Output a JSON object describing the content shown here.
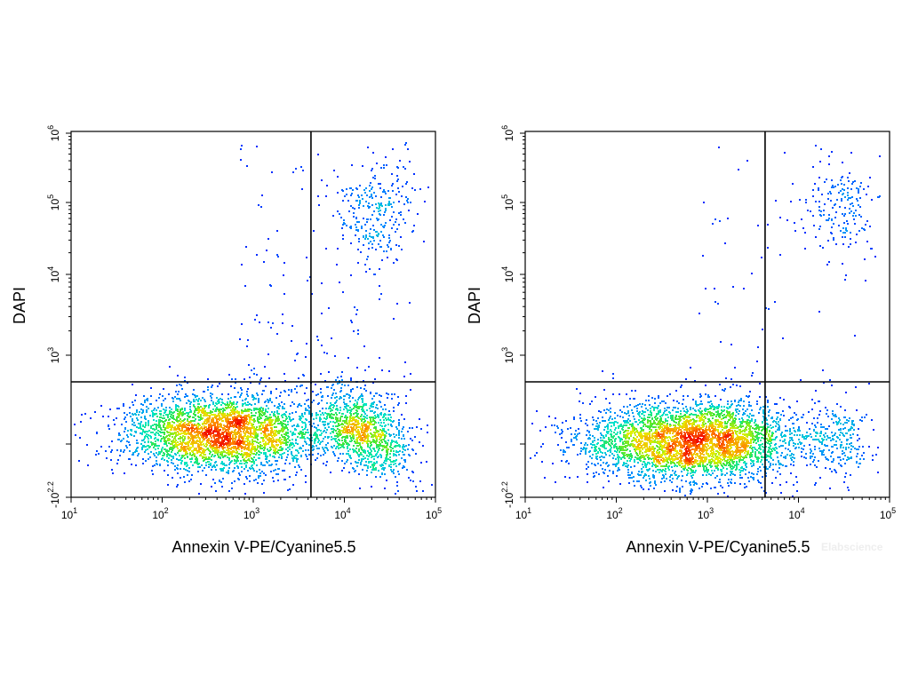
{
  "chart_data": [
    {
      "type": "scatter",
      "title": "",
      "xlabel": "Annexin V-PE/Cyanine5.5",
      "ylabel": "DAPI",
      "x_scale": "log",
      "y_scale": "biexponential",
      "x_ticks": [
        {
          "value": 10,
          "base": "10",
          "exp": "1"
        },
        {
          "value": 100,
          "base": "10",
          "exp": "2"
        },
        {
          "value": 1000,
          "base": "10",
          "exp": "3"
        },
        {
          "value": 10000,
          "base": "10",
          "exp": "4"
        },
        {
          "value": 100000,
          "base": "10",
          "exp": "5"
        }
      ],
      "y_ticks": [
        {
          "value": -158,
          "base": "-10",
          "exp": "2.2"
        },
        {
          "value": 1000,
          "base": "10",
          "exp": "3"
        },
        {
          "value": 10000,
          "base": "10",
          "exp": "4"
        },
        {
          "value": 100000,
          "base": "10",
          "exp": "5"
        },
        {
          "value": 1000000,
          "base": "10",
          "exp": "6"
        }
      ],
      "quadrant_gate": {
        "x": 4300,
        "y": 700
      },
      "populations": [
        {
          "name": "",
          "x_center": 450,
          "y_center": 120,
          "count": 3200
        },
        {
          "name": "",
          "x_center": 16000,
          "y_center": 130,
          "count": 1100
        },
        {
          "name": "",
          "x_center": 22000,
          "y_center": 70000,
          "count": 260
        }
      ]
    },
    {
      "type": "scatter",
      "title": "",
      "xlabel": "Annexin V-PE/Cyanine5.5",
      "ylabel": "DAPI",
      "x_scale": "log",
      "y_scale": "biexponential",
      "x_ticks": [
        {
          "value": 10,
          "base": "10",
          "exp": "1"
        },
        {
          "value": 100,
          "base": "10",
          "exp": "2"
        },
        {
          "value": 1000,
          "base": "10",
          "exp": "3"
        },
        {
          "value": 10000,
          "base": "10",
          "exp": "4"
        },
        {
          "value": 100000,
          "base": "10",
          "exp": "5"
        }
      ],
      "y_ticks": [
        {
          "value": -158,
          "base": "-10",
          "exp": "2.2"
        },
        {
          "value": 1000,
          "base": "10",
          "exp": "3"
        },
        {
          "value": 10000,
          "base": "10",
          "exp": "4"
        },
        {
          "value": 100000,
          "base": "10",
          "exp": "5"
        },
        {
          "value": 1000000,
          "base": "10",
          "exp": "6"
        }
      ],
      "quadrant_gate": {
        "x": 4300,
        "y": 700
      },
      "populations": [
        {
          "name": "",
          "x_center": 700,
          "y_center": 30,
          "count": 3800
        },
        {
          "name": "",
          "x_center": 28000,
          "y_center": 60,
          "count": 200
        },
        {
          "name": "",
          "x_center": 30000,
          "y_center": 80000,
          "count": 170
        }
      ]
    }
  ],
  "watermark": "Elabscience"
}
